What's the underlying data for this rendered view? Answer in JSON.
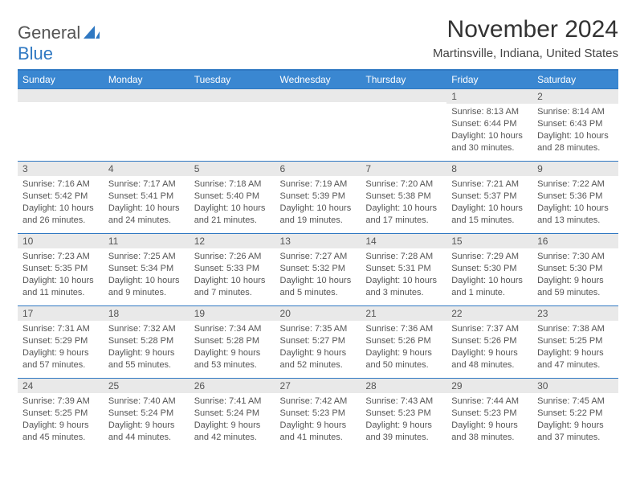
{
  "logo": {
    "word1": "General",
    "word2": "Blue"
  },
  "title": "November 2024",
  "location": "Martinsville, Indiana, United States",
  "colors": {
    "header_bg": "#3a87d1",
    "header_text": "#ffffff",
    "border": "#2f78c2",
    "daynum_bg": "#e9e9e9",
    "text": "#555555"
  },
  "weekdays": [
    "Sunday",
    "Monday",
    "Tuesday",
    "Wednesday",
    "Thursday",
    "Friday",
    "Saturday"
  ],
  "leading_blanks": 5,
  "days": [
    {
      "n": 1,
      "sunrise": "8:13 AM",
      "sunset": "6:44 PM",
      "daylight": "10 hours and 30 minutes."
    },
    {
      "n": 2,
      "sunrise": "8:14 AM",
      "sunset": "6:43 PM",
      "daylight": "10 hours and 28 minutes."
    },
    {
      "n": 3,
      "sunrise": "7:16 AM",
      "sunset": "5:42 PM",
      "daylight": "10 hours and 26 minutes."
    },
    {
      "n": 4,
      "sunrise": "7:17 AM",
      "sunset": "5:41 PM",
      "daylight": "10 hours and 24 minutes."
    },
    {
      "n": 5,
      "sunrise": "7:18 AM",
      "sunset": "5:40 PM",
      "daylight": "10 hours and 21 minutes."
    },
    {
      "n": 6,
      "sunrise": "7:19 AM",
      "sunset": "5:39 PM",
      "daylight": "10 hours and 19 minutes."
    },
    {
      "n": 7,
      "sunrise": "7:20 AM",
      "sunset": "5:38 PM",
      "daylight": "10 hours and 17 minutes."
    },
    {
      "n": 8,
      "sunrise": "7:21 AM",
      "sunset": "5:37 PM",
      "daylight": "10 hours and 15 minutes."
    },
    {
      "n": 9,
      "sunrise": "7:22 AM",
      "sunset": "5:36 PM",
      "daylight": "10 hours and 13 minutes."
    },
    {
      "n": 10,
      "sunrise": "7:23 AM",
      "sunset": "5:35 PM",
      "daylight": "10 hours and 11 minutes."
    },
    {
      "n": 11,
      "sunrise": "7:25 AM",
      "sunset": "5:34 PM",
      "daylight": "10 hours and 9 minutes."
    },
    {
      "n": 12,
      "sunrise": "7:26 AM",
      "sunset": "5:33 PM",
      "daylight": "10 hours and 7 minutes."
    },
    {
      "n": 13,
      "sunrise": "7:27 AM",
      "sunset": "5:32 PM",
      "daylight": "10 hours and 5 minutes."
    },
    {
      "n": 14,
      "sunrise": "7:28 AM",
      "sunset": "5:31 PM",
      "daylight": "10 hours and 3 minutes."
    },
    {
      "n": 15,
      "sunrise": "7:29 AM",
      "sunset": "5:30 PM",
      "daylight": "10 hours and 1 minute."
    },
    {
      "n": 16,
      "sunrise": "7:30 AM",
      "sunset": "5:30 PM",
      "daylight": "9 hours and 59 minutes."
    },
    {
      "n": 17,
      "sunrise": "7:31 AM",
      "sunset": "5:29 PM",
      "daylight": "9 hours and 57 minutes."
    },
    {
      "n": 18,
      "sunrise": "7:32 AM",
      "sunset": "5:28 PM",
      "daylight": "9 hours and 55 minutes."
    },
    {
      "n": 19,
      "sunrise": "7:34 AM",
      "sunset": "5:28 PM",
      "daylight": "9 hours and 53 minutes."
    },
    {
      "n": 20,
      "sunrise": "7:35 AM",
      "sunset": "5:27 PM",
      "daylight": "9 hours and 52 minutes."
    },
    {
      "n": 21,
      "sunrise": "7:36 AM",
      "sunset": "5:26 PM",
      "daylight": "9 hours and 50 minutes."
    },
    {
      "n": 22,
      "sunrise": "7:37 AM",
      "sunset": "5:26 PM",
      "daylight": "9 hours and 48 minutes."
    },
    {
      "n": 23,
      "sunrise": "7:38 AM",
      "sunset": "5:25 PM",
      "daylight": "9 hours and 47 minutes."
    },
    {
      "n": 24,
      "sunrise": "7:39 AM",
      "sunset": "5:25 PM",
      "daylight": "9 hours and 45 minutes."
    },
    {
      "n": 25,
      "sunrise": "7:40 AM",
      "sunset": "5:24 PM",
      "daylight": "9 hours and 44 minutes."
    },
    {
      "n": 26,
      "sunrise": "7:41 AM",
      "sunset": "5:24 PM",
      "daylight": "9 hours and 42 minutes."
    },
    {
      "n": 27,
      "sunrise": "7:42 AM",
      "sunset": "5:23 PM",
      "daylight": "9 hours and 41 minutes."
    },
    {
      "n": 28,
      "sunrise": "7:43 AM",
      "sunset": "5:23 PM",
      "daylight": "9 hours and 39 minutes."
    },
    {
      "n": 29,
      "sunrise": "7:44 AM",
      "sunset": "5:23 PM",
      "daylight": "9 hours and 38 minutes."
    },
    {
      "n": 30,
      "sunrise": "7:45 AM",
      "sunset": "5:22 PM",
      "daylight": "9 hours and 37 minutes."
    }
  ],
  "labels": {
    "sunrise": "Sunrise:",
    "sunset": "Sunset:",
    "daylight": "Daylight:"
  }
}
